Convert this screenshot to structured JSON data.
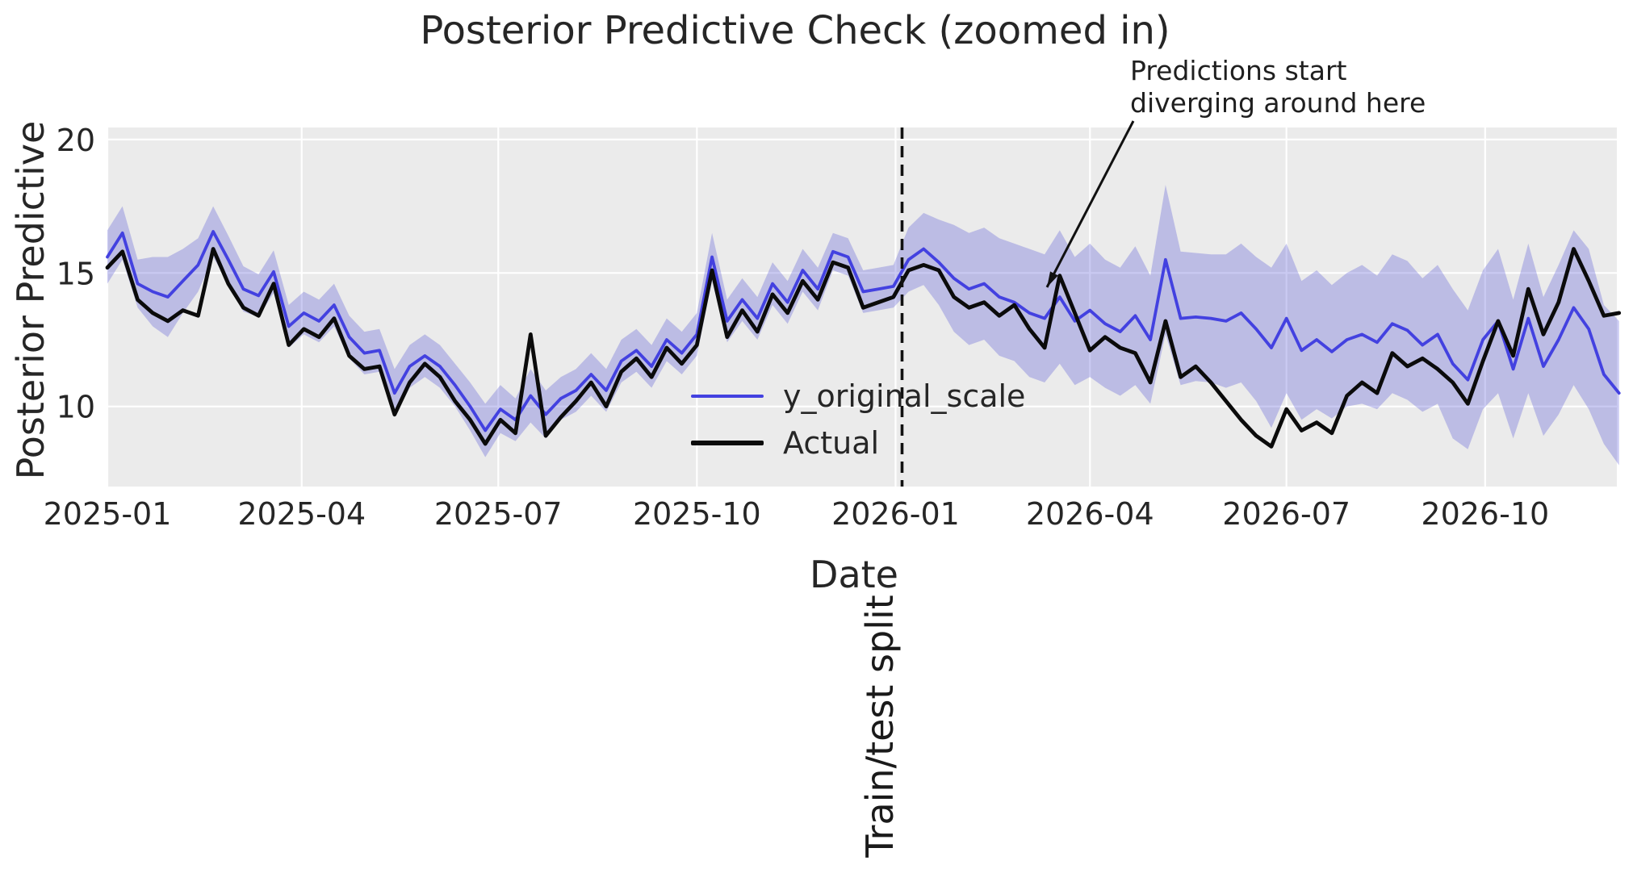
{
  "title": "Posterior Predictive Check (zoomed in)",
  "annotation": {
    "line1": "Predictions start",
    "line2": "diverging around here"
  },
  "split_label": "Train/test split",
  "axes": {
    "xlabel": "Date",
    "ylabel": "Posterior Predictive",
    "yticks": [
      10,
      15,
      20
    ],
    "xticks": [
      {
        "label": "2025-01",
        "date": "2025-01-01"
      },
      {
        "label": "2025-04",
        "date": "2025-04-01"
      },
      {
        "label": "2025-07",
        "date": "2025-07-01"
      },
      {
        "label": "2025-10",
        "date": "2025-10-01"
      },
      {
        "label": "2026-01",
        "date": "2026-01-01"
      },
      {
        "label": "2026-04",
        "date": "2026-04-01"
      },
      {
        "label": "2026-07",
        "date": "2026-07-01"
      },
      {
        "label": "2026-10",
        "date": "2026-10-01"
      }
    ]
  },
  "legend": {
    "items": [
      {
        "label": "y_original_scale",
        "color": "#4341e0"
      },
      {
        "label": "Actual",
        "color": "#0b0b0b"
      }
    ]
  },
  "colors": {
    "axes_background": "#ebebeb",
    "grid": "#ffffff",
    "predicted_line": "#4341e0",
    "actual_line": "#0b0b0b",
    "band_fill": "#5a5ad8",
    "band_opacity": 0.32,
    "split_line": "#111111",
    "text": "#262626"
  },
  "chart_data": {
    "type": "line",
    "title": "Posterior Predictive Check (zoomed in)",
    "xlabel": "Date",
    "ylabel": "Posterior Predictive",
    "grid": true,
    "legend_position": "center",
    "ylim": [
      7.0,
      20.45
    ],
    "xlim": [
      "2025-01-01",
      "2026-12-01"
    ],
    "start_date": "2025-01-01",
    "freq_days": 7,
    "split_date": "2026-01-04",
    "series": [
      {
        "name": "y_original_scale",
        "values": [
          15.6,
          16.5,
          14.6,
          14.3,
          14.1,
          14.7,
          15.3,
          16.55,
          15.5,
          14.4,
          14.15,
          15.05,
          13.0,
          13.5,
          13.2,
          13.8,
          12.6,
          12.0,
          12.1,
          10.5,
          11.5,
          11.9,
          11.5,
          10.8,
          10.0,
          9.1,
          9.9,
          9.5,
          10.4,
          9.7,
          10.3,
          10.6,
          11.2,
          10.6,
          11.7,
          12.1,
          11.5,
          12.5,
          12.0,
          12.7,
          15.6,
          13.2,
          14.0,
          13.3,
          14.6,
          13.9,
          15.1,
          14.4,
          15.8,
          15.6,
          14.3,
          14.4,
          14.5,
          15.5,
          15.9,
          15.4,
          14.8,
          14.4,
          14.6,
          14.1,
          13.9,
          13.5,
          13.3,
          14.1,
          13.2,
          13.6,
          13.1,
          12.8,
          13.4,
          12.5,
          15.5,
          13.3,
          13.35,
          13.3,
          13.2,
          13.5,
          12.9,
          12.2,
          13.3,
          12.1,
          12.5,
          12.05,
          12.5,
          12.7,
          12.4,
          13.1,
          12.85,
          12.3,
          12.7,
          11.6,
          11.0,
          12.5,
          13.2,
          11.4,
          13.3,
          11.5,
          12.5,
          13.7,
          12.9,
          11.2,
          10.5
        ]
      },
      {
        "name": "Actual",
        "values": [
          15.2,
          15.8,
          14.0,
          13.5,
          13.2,
          13.6,
          13.4,
          15.9,
          14.6,
          13.7,
          13.4,
          14.6,
          12.3,
          12.9,
          12.6,
          13.3,
          11.9,
          11.4,
          11.5,
          9.7,
          10.9,
          11.6,
          11.1,
          10.2,
          9.5,
          8.6,
          9.5,
          9.0,
          12.7,
          8.9,
          9.6,
          10.2,
          10.9,
          10.0,
          11.3,
          11.8,
          11.1,
          12.2,
          11.6,
          12.3,
          15.1,
          12.6,
          13.6,
          12.8,
          14.2,
          13.5,
          14.7,
          14.0,
          15.4,
          15.2,
          13.7,
          13.9,
          14.1,
          15.1,
          15.3,
          15.1,
          14.1,
          13.7,
          13.9,
          13.4,
          13.8,
          12.9,
          12.2,
          14.9,
          13.5,
          12.1,
          12.6,
          12.2,
          12.0,
          10.9,
          13.2,
          11.1,
          11.5,
          10.9,
          10.2,
          9.5,
          8.9,
          8.5,
          9.9,
          9.1,
          9.4,
          9.0,
          10.4,
          10.9,
          10.5,
          12.0,
          11.5,
          11.8,
          11.4,
          10.9,
          10.1,
          11.7,
          13.2,
          11.9,
          14.4,
          12.7,
          13.9,
          15.9,
          14.7,
          13.4,
          13.5
        ]
      }
    ],
    "band": {
      "name": "y_original_scale credible interval",
      "lower": [
        14.6,
        15.5,
        13.7,
        13.0,
        12.6,
        13.5,
        14.3,
        15.6,
        14.6,
        13.55,
        13.35,
        14.25,
        12.2,
        12.7,
        12.4,
        13.0,
        11.8,
        11.2,
        11.3,
        9.6,
        10.7,
        11.1,
        10.7,
        10.0,
        9.1,
        8.1,
        9.0,
        8.7,
        9.4,
        8.8,
        9.5,
        9.8,
        10.4,
        9.8,
        10.9,
        11.3,
        10.7,
        11.7,
        11.2,
        11.9,
        14.7,
        12.4,
        13.2,
        12.5,
        13.8,
        13.1,
        14.3,
        13.6,
        15.1,
        14.9,
        13.5,
        13.6,
        13.7,
        14.3,
        14.55,
        13.8,
        12.8,
        12.3,
        12.5,
        11.9,
        11.7,
        11.1,
        10.9,
        11.6,
        10.8,
        11.1,
        10.7,
        10.4,
        10.8,
        10.1,
        12.7,
        10.8,
        10.95,
        10.9,
        10.7,
        10.9,
        10.2,
        9.2,
        10.5,
        9.5,
        9.9,
        9.55,
        10.0,
        10.1,
        9.9,
        10.5,
        10.25,
        9.8,
        10.1,
        8.8,
        8.4,
        9.9,
        10.5,
        8.8,
        10.5,
        8.9,
        9.7,
        10.8,
        9.9,
        8.6,
        7.8
      ],
      "upper": [
        16.6,
        17.5,
        15.5,
        15.6,
        15.6,
        15.9,
        16.3,
        17.5,
        16.4,
        15.25,
        14.95,
        15.85,
        13.8,
        14.3,
        14.0,
        14.6,
        13.4,
        12.8,
        12.9,
        11.4,
        12.3,
        12.7,
        12.3,
        11.6,
        10.9,
        10.1,
        10.8,
        10.3,
        11.4,
        10.6,
        11.1,
        11.4,
        12.0,
        11.4,
        12.5,
        12.9,
        12.3,
        13.3,
        12.8,
        13.5,
        16.5,
        14.0,
        14.8,
        14.1,
        15.4,
        14.7,
        15.9,
        15.2,
        16.5,
        16.3,
        15.1,
        15.2,
        15.3,
        16.7,
        17.25,
        17.0,
        16.8,
        16.5,
        16.7,
        16.3,
        16.1,
        15.9,
        15.7,
        16.6,
        15.6,
        16.1,
        15.5,
        15.2,
        16.0,
        14.9,
        18.3,
        15.8,
        15.75,
        15.7,
        15.7,
        16.1,
        15.6,
        15.2,
        16.1,
        14.7,
        15.1,
        14.55,
        15.0,
        15.3,
        14.9,
        15.7,
        15.45,
        14.8,
        15.3,
        14.4,
        13.6,
        15.1,
        15.9,
        14.0,
        16.1,
        14.1,
        15.3,
        16.6,
        15.9,
        13.8,
        13.2
      ]
    }
  }
}
